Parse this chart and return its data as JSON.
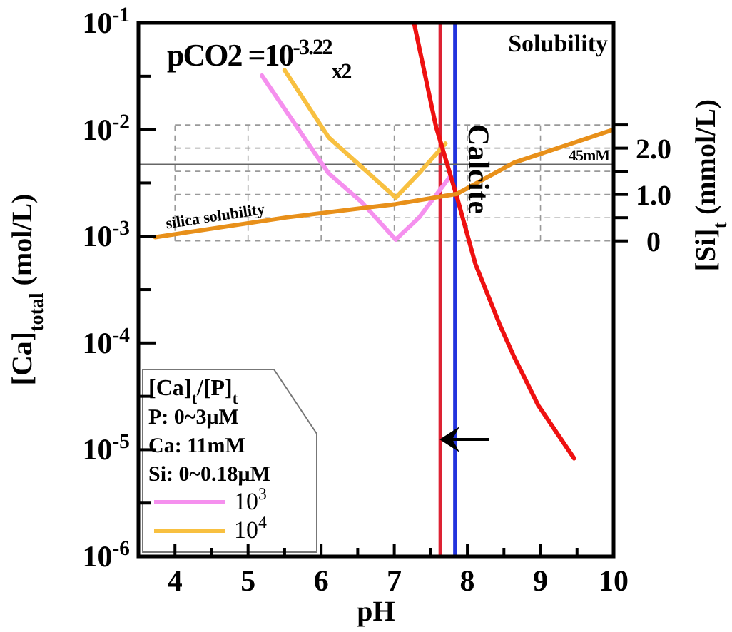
{
  "chart_data": {
    "type": "line",
    "xlabel": "pH",
    "ylabel": "[Ca]$_{total}$ (mol/L)",
    "y2label": "[Si]$_{t}$ (mmol/L)",
    "legend_title": "[Ca]$_{t}$/[P]$_{t}$",
    "annotations": [
      "pCO2 =10$^{-3.22}$$_{x2}$",
      "Solubility",
      "P: 0~3μM",
      "Ca: 11mM",
      "Si: 0~0.18μM"
    ],
    "log": "y",
    "xlim": [
      3.5,
      10
    ],
    "xticks": [
      {
        "value": 3.5,
        "label": null
      },
      4,
      {
        "value": 4.5,
        "label": null
      },
      5,
      {
        "value": 5.5,
        "label": null
      },
      6,
      {
        "value": 6.5,
        "label": null
      },
      7,
      {
        "value": 7.5,
        "label": null
      },
      8,
      {
        "value": 8.5,
        "label": null
      },
      9,
      {
        "value": 9.5,
        "label": null
      },
      10
    ],
    "ylim": [
      1e-06,
      0.1
    ],
    "yticks": [
      {
        "value": 1e-06,
        "label": "10$^{-6}$"
      },
      {
        "value": 3.16e-06,
        "label": null
      },
      {
        "value": 1e-05,
        "label": "10$^{-5}$"
      },
      {
        "value": 3.16e-05,
        "label": null
      },
      {
        "value": 0.0001,
        "label": "10$^{-4}$"
      },
      {
        "value": 0.000316,
        "label": null
      },
      {
        "value": 0.001,
        "label": "10$^{-3}$"
      },
      {
        "value": 0.00316,
        "label": null
      },
      {
        "value": 0.01,
        "label": "10$^{-2}$"
      },
      {
        "value": 0.0316,
        "label": null
      },
      {
        "value": 0.1,
        "label": "10$^{-1}$"
      }
    ],
    "y2lim": [
      -6.8,
      4.7
    ],
    "y2ticks": [
      0,
      {
        "value": 0.5,
        "label": null
      },
      {
        "value": 1,
        "label": "1.0"
      },
      {
        "value": 1.5,
        "label": null
      },
      {
        "value": 2,
        "label": "2.0"
      },
      {
        "value": 2.5,
        "label": null
      }
    ],
    "grid": true,
    "legend": "bottom left",
    "ref_lines": [
      {
        "axis": "x",
        "value": 7.63,
        "color": "#dd2233"
      },
      {
        "axis": "x",
        "value": 7.83,
        "color": "#2233dd"
      },
      {
        "axis": "y",
        "value": 0.0047,
        "label": "45mM",
        "color": "#666666"
      }
    ],
    "series": [
      {
        "name": "10$^{3}$",
        "color": "#f590ee",
        "x": [
          5.19,
          6.1,
          6.55,
          7.02,
          7.34,
          7.76
        ],
        "values": [
          0.032,
          0.0039,
          0.0021,
          0.00093,
          0.0015,
          0.0036
        ]
      },
      {
        "name": "10$^{4}$",
        "color": "#f8c040",
        "x": [
          5.5,
          6.1,
          7.02,
          7.34,
          7.7
        ],
        "values": [
          0.036,
          0.0085,
          0.0023,
          0.0039,
          0.0074
        ]
      },
      {
        "name": "Calcite",
        "color": "#ee1111",
        "x": [
          7.27,
          7.57,
          7.86,
          8.11,
          8.44,
          8.64,
          8.97,
          9.22,
          9.46
        ],
        "values": [
          0.1,
          0.0107,
          0.0023,
          0.00055,
          0.00015,
          7.4e-05,
          2.6e-05,
          1.45e-05,
          8.3e-06
        ]
      },
      {
        "name": "silica solubility",
        "color": "#e8901a",
        "x": [
          3.73,
          5.52,
          7.02,
          7.86,
          8.64,
          10
        ],
        "values": [
          0.00098,
          0.0015,
          0.002,
          0.0025,
          0.0049,
          0.01
        ]
      }
    ]
  }
}
